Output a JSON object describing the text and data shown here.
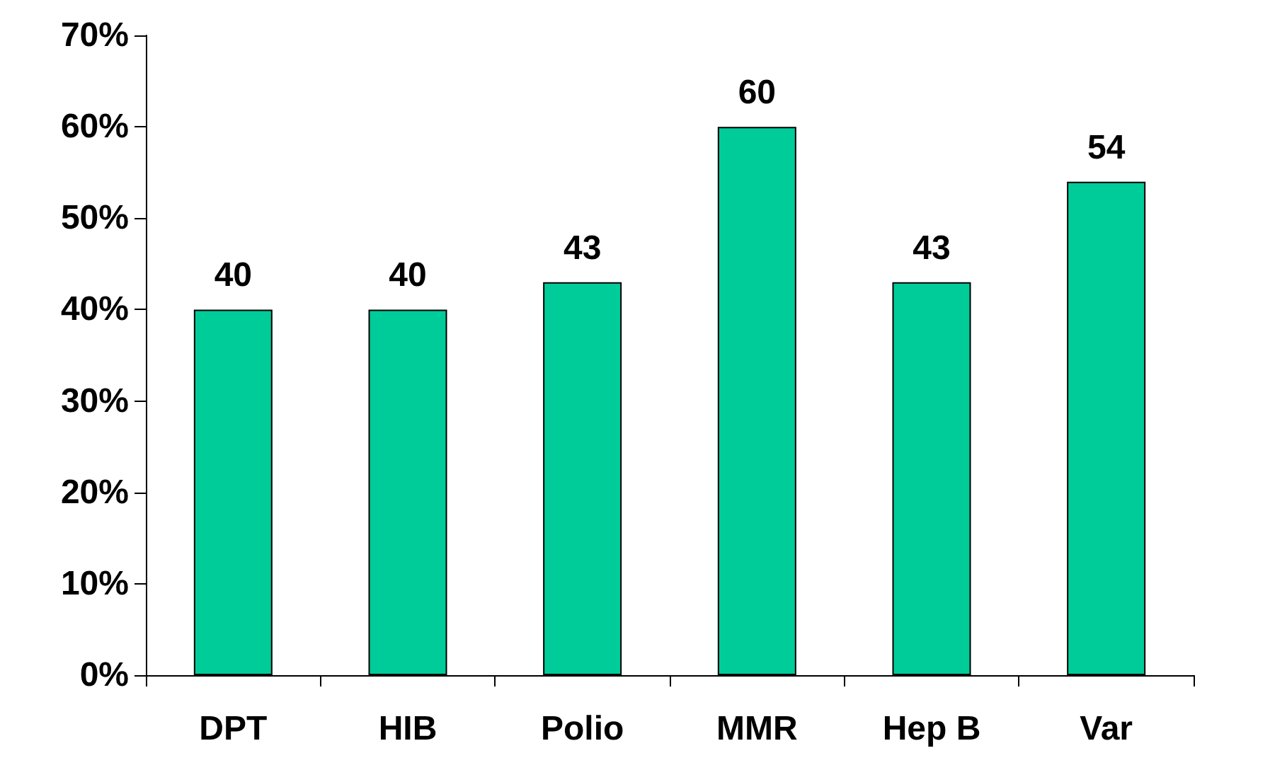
{
  "chart_data": {
    "type": "bar",
    "categories": [
      "DPT",
      "HIB",
      "Polio",
      "MMR",
      "Hep B",
      "Var"
    ],
    "values": [
      40,
      40,
      43,
      60,
      43,
      54
    ],
    "color": "#00cc99",
    "ylim": [
      0,
      70
    ],
    "yticks": [
      {
        "value": 0,
        "label": "0%"
      },
      {
        "value": 10,
        "label": "10%"
      },
      {
        "value": 20,
        "label": "20%"
      },
      {
        "value": 30,
        "label": "30%"
      },
      {
        "value": 40,
        "label": "40%"
      },
      {
        "value": 50,
        "label": "50%"
      },
      {
        "value": 60,
        "label": "60%"
      },
      {
        "value": 70,
        "label": "70%"
      }
    ],
    "data_labels": true
  }
}
